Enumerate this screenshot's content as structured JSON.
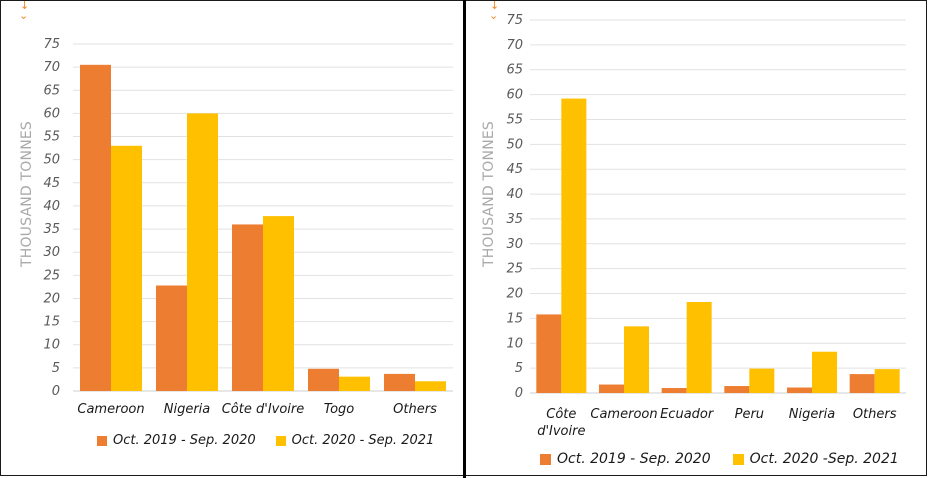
{
  "colors": {
    "series1": "#ed7d31",
    "series2": "#ffc000",
    "grid": "#e2e2e2",
    "axis_text": "#5a5a5a",
    "ylabel": "#a9a9a9",
    "arrow": "#f08a24"
  },
  "chart_data": [
    {
      "type": "bar",
      "ylabel": "THOUSAND TONNES",
      "ylim": [
        0,
        75
      ],
      "yticks": [
        0,
        5,
        10,
        15,
        20,
        25,
        30,
        35,
        40,
        45,
        50,
        55,
        60,
        65,
        70,
        75
      ],
      "grid": true,
      "legend_position": "bottom",
      "categories": [
        "Cameroon",
        "Nigeria",
        "Côte d'Ivoire",
        "Togo",
        "Others"
      ],
      "series": [
        {
          "name": "Oct. 2019 - Sep. 2020",
          "values": [
            70.5,
            22.8,
            36.0,
            4.8,
            3.7
          ]
        },
        {
          "name": "Oct. 2020 - Sep. 2021",
          "values": [
            53.0,
            60.0,
            37.8,
            3.1,
            2.1
          ]
        }
      ]
    },
    {
      "type": "bar",
      "ylabel": "THOUSAND TONNES",
      "ylim": [
        0,
        75
      ],
      "yticks": [
        0,
        5,
        10,
        15,
        20,
        25,
        30,
        35,
        40,
        45,
        50,
        55,
        60,
        65,
        70,
        75
      ],
      "grid": true,
      "legend_position": "bottom",
      "categories": [
        "Côte d'Ivoire",
        "Cameroon",
        "Ecuador",
        "Peru",
        "Nigeria",
        "Others"
      ],
      "category_lines": [
        [
          "Côte",
          "d'Ivoire"
        ],
        [
          "Cameroon"
        ],
        [
          "Ecuador"
        ],
        [
          "Peru"
        ],
        [
          "Nigeria"
        ],
        [
          "Others"
        ]
      ],
      "series": [
        {
          "name": "Oct. 2019 - Sep. 2020",
          "values": [
            15.8,
            1.7,
            1.0,
            1.4,
            1.1,
            3.8
          ]
        },
        {
          "name": "Oct. 2020 -Sep. 2021",
          "values": [
            59.2,
            13.4,
            18.3,
            4.9,
            8.3,
            4.8
          ]
        }
      ]
    }
  ]
}
